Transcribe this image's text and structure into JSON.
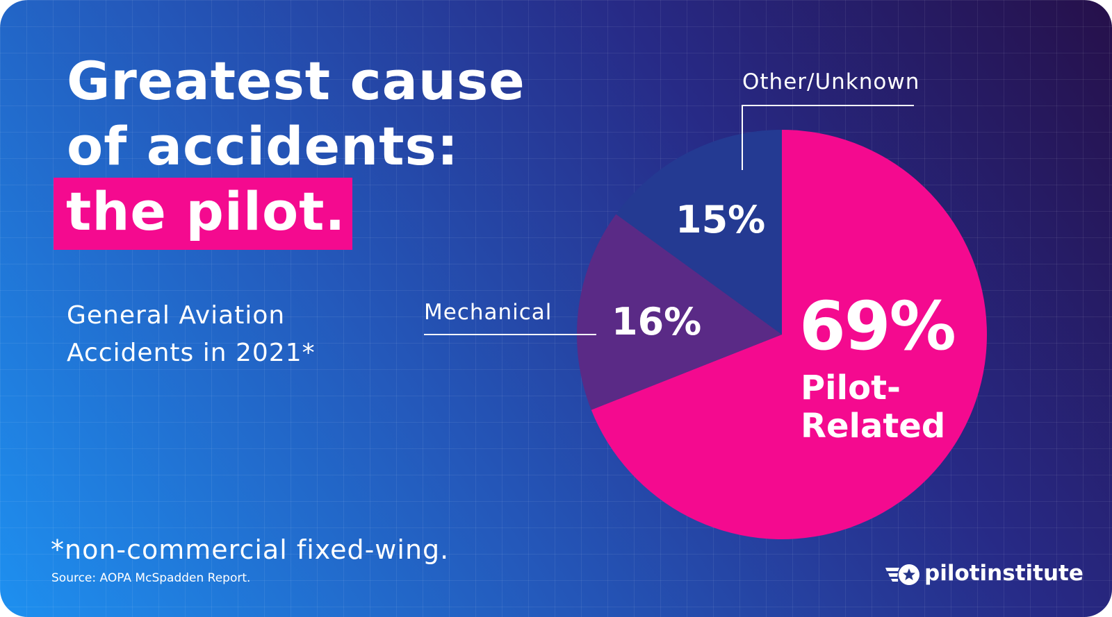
{
  "header": {
    "title_line1": "Greatest cause",
    "title_line2": "of accidents:",
    "title_highlight": "the pilot."
  },
  "subtitle": {
    "line1": "General Aviation",
    "line2": "Accidents in 2021*"
  },
  "footnote": "*non-commercial fixed-wing.",
  "source": "Source: AOPA McSpadden Report.",
  "brand": {
    "name": "pilotinstitute",
    "icon": "star-wings-icon"
  },
  "colors": {
    "background_start": "#1e90f0",
    "background_end": "#26104a",
    "accent_pink": "#f40a8f",
    "mechanical": "#5a2a86",
    "other_unknown": "#243a92"
  },
  "chart_data": {
    "type": "pie",
    "title": "Greatest cause of accidents: the pilot.",
    "slices": [
      {
        "label": "Pilot-Related",
        "label_line1": "Pilot-",
        "label_line2": "Related",
        "value": 69,
        "value_label": "69%",
        "color": "#f40a8f"
      },
      {
        "label": "Mechanical",
        "value": 16,
        "value_label": "16%",
        "color": "#5a2a86"
      },
      {
        "label": "Other/Unknown",
        "value": 15,
        "value_label": "15%",
        "color": "#243a92"
      }
    ],
    "start_angle_deg": 0,
    "direction": "clockwise"
  }
}
